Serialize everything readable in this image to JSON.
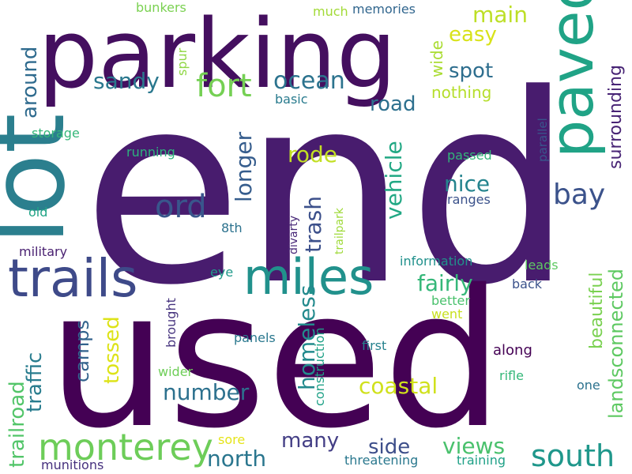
{
  "words": [
    {
      "text": "end",
      "color": "#481c6e"
    },
    {
      "text": "used",
      "color": "#440154"
    },
    {
      "text": "parking",
      "color": "#440f5f"
    },
    {
      "text": "lot",
      "color": "#2b7f8e"
    },
    {
      "text": "trails",
      "color": "#3e4a89"
    },
    {
      "text": "miles",
      "color": "#21918c"
    },
    {
      "text": "paved",
      "color": "#20a386"
    },
    {
      "text": "fort",
      "color": "#75d054"
    },
    {
      "text": "monterey",
      "color": "#6dcd59"
    },
    {
      "text": "south",
      "color": "#1f978b"
    },
    {
      "text": "ord",
      "color": "#39568c"
    },
    {
      "text": "bay",
      "color": "#3b528b"
    },
    {
      "text": "ocean",
      "color": "#2c738e"
    },
    {
      "text": "sandy",
      "color": "#2a788e"
    },
    {
      "text": "main",
      "color": "#bddf26"
    },
    {
      "text": "easy",
      "color": "#d8e219"
    },
    {
      "text": "spot",
      "color": "#2e6e8e"
    },
    {
      "text": "road",
      "color": "#2d708e"
    },
    {
      "text": "nice",
      "color": "#25848e"
    },
    {
      "text": "rode",
      "color": "#c2df23"
    },
    {
      "text": "trash",
      "color": "#3c508b"
    },
    {
      "text": "longer",
      "color": "#365d8d"
    },
    {
      "text": "vehicle",
      "color": "#22a884"
    },
    {
      "text": "number",
      "color": "#2d718e"
    },
    {
      "text": "coastal",
      "color": "#d0e11c"
    },
    {
      "text": "homeless",
      "color": "#238a8d"
    },
    {
      "text": "fairly",
      "color": "#35b779"
    },
    {
      "text": "many",
      "color": "#433e85"
    },
    {
      "text": "north",
      "color": "#2a768e"
    },
    {
      "text": "side",
      "color": "#3d4e8a"
    },
    {
      "text": "views",
      "color": "#4ac16d"
    },
    {
      "text": "camps",
      "color": "#33638d"
    },
    {
      "text": "tossed",
      "color": "#dde318"
    },
    {
      "text": "traffic",
      "color": "#287c8e"
    },
    {
      "text": "trailroad",
      "color": "#52c569"
    },
    {
      "text": "around",
      "color": "#2f6b8e"
    },
    {
      "text": "surrounding",
      "color": "#482475"
    },
    {
      "text": "beautiful",
      "color": "#7ad151"
    },
    {
      "text": "landsconnected",
      "color": "#5ec962"
    },
    {
      "text": "wide",
      "color": "#aadc32"
    },
    {
      "text": "nothing",
      "color": "#b5de2b"
    },
    {
      "text": "bunkers",
      "color": "#7ad151"
    },
    {
      "text": "much",
      "color": "#a2da37"
    },
    {
      "text": "memories",
      "color": "#31668e"
    },
    {
      "text": "spur",
      "color": "#8fd744"
    },
    {
      "text": "basic",
      "color": "#297b8e"
    },
    {
      "text": "storage",
      "color": "#35b779"
    },
    {
      "text": "running",
      "color": "#2db27d"
    },
    {
      "text": "passed",
      "color": "#32b67a"
    },
    {
      "text": "parallel",
      "color": "#39568c"
    },
    {
      "text": "ranges",
      "color": "#3b528b"
    },
    {
      "text": "divarty",
      "color": "#482878"
    },
    {
      "text": "trailpark",
      "color": "#9fda3a"
    },
    {
      "text": "old",
      "color": "#20a486"
    },
    {
      "text": "8th",
      "color": "#2c728e"
    },
    {
      "text": "military",
      "color": "#481f70"
    },
    {
      "text": "information",
      "color": "#21918c"
    },
    {
      "text": "leads",
      "color": "#5ec962"
    },
    {
      "text": "eye",
      "color": "#1f9a8a"
    },
    {
      "text": "back",
      "color": "#3b528b"
    },
    {
      "text": "better",
      "color": "#4ac16d"
    },
    {
      "text": "went",
      "color": "#c8e020"
    },
    {
      "text": "brought",
      "color": "#46337e"
    },
    {
      "text": "panels",
      "color": "#2a788e"
    },
    {
      "text": "construction",
      "color": "#1fa187"
    },
    {
      "text": "first",
      "color": "#26828e"
    },
    {
      "text": "along",
      "color": "#440154"
    },
    {
      "text": "rifle",
      "color": "#35b779"
    },
    {
      "text": "wider",
      "color": "#6ece58"
    },
    {
      "text": "one",
      "color": "#2c728e"
    },
    {
      "text": "sore",
      "color": "#e5e419"
    },
    {
      "text": "threatening",
      "color": "#2a788e"
    },
    {
      "text": "training",
      "color": "#1fa187"
    },
    {
      "text": "munitions",
      "color": "#46307e"
    }
  ]
}
